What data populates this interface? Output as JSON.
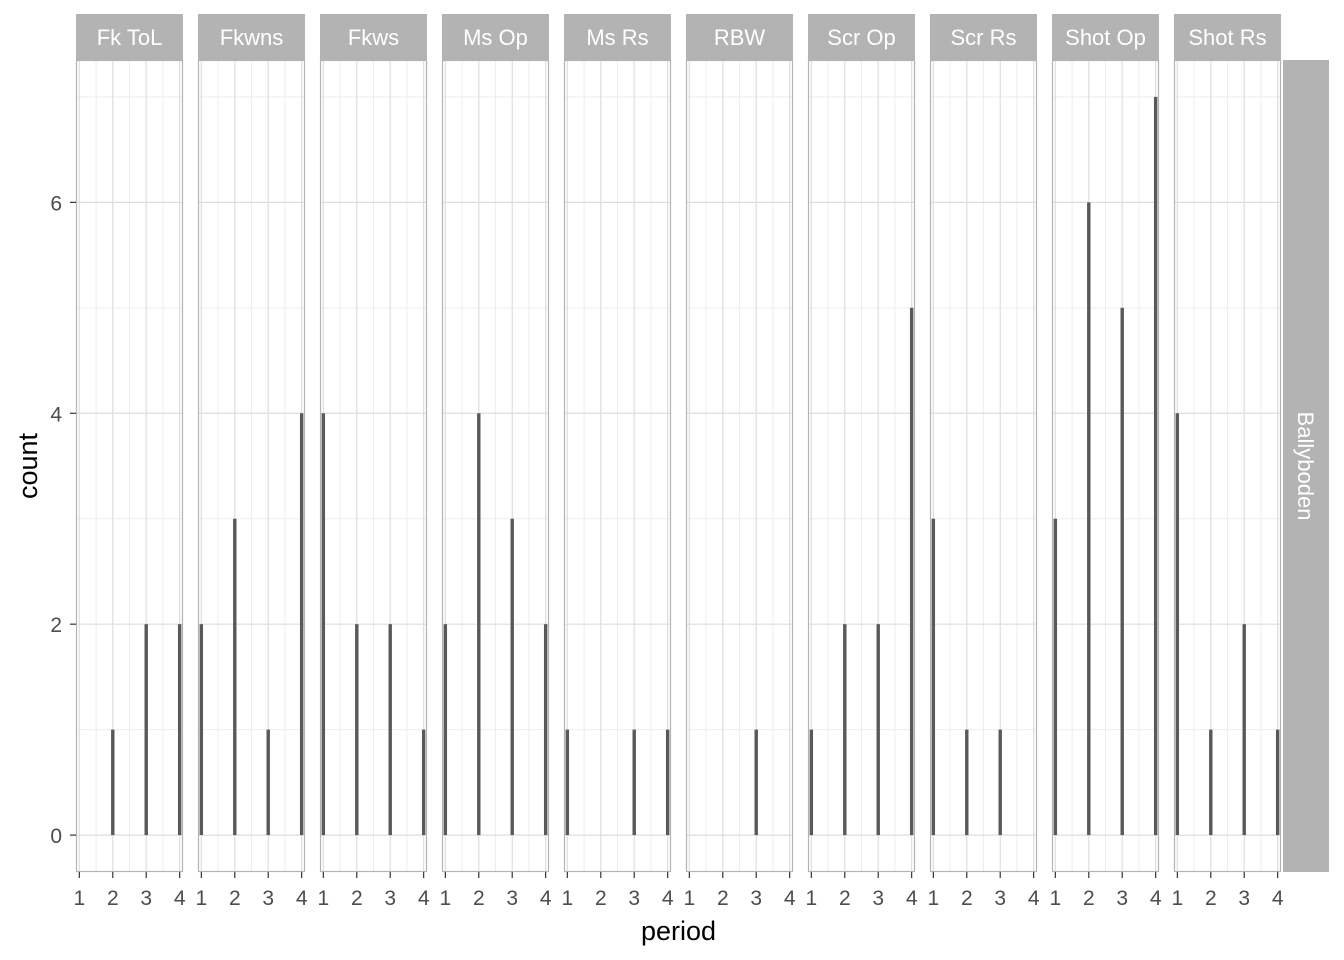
{
  "chart_data": {
    "type": "bar",
    "xlabel": "period",
    "ylabel": "count",
    "x_ticks": [
      1,
      2,
      3,
      4
    ],
    "y_ticks": [
      0,
      2,
      4,
      6
    ],
    "xlim": [
      0.9,
      4.1
    ],
    "ylim": [
      -0.35,
      7.35
    ],
    "grid": true,
    "row_strip": "Ballyboden",
    "panels": [
      {
        "name": "Fk ToL",
        "values": [
          0,
          1,
          2,
          2
        ]
      },
      {
        "name": "Fkwns",
        "values": [
          2,
          3,
          1,
          4
        ]
      },
      {
        "name": "Fkws",
        "values": [
          4,
          2,
          2,
          1
        ]
      },
      {
        "name": "Ms Op",
        "values": [
          2,
          4,
          3,
          2
        ]
      },
      {
        "name": "Ms Rs",
        "values": [
          1,
          0,
          1,
          1
        ]
      },
      {
        "name": "RBW",
        "values": [
          0,
          0,
          1,
          0
        ]
      },
      {
        "name": "Scr Op",
        "values": [
          1,
          2,
          2,
          5
        ]
      },
      {
        "name": "Scr Rs",
        "values": [
          3,
          1,
          1,
          0
        ]
      },
      {
        "name": "Shot Op",
        "values": [
          3,
          6,
          5,
          7
        ]
      },
      {
        "name": "Shot Rs",
        "values": [
          4,
          1,
          2,
          1
        ]
      }
    ],
    "colors": {
      "bar": "#595959",
      "strip_fill": "#b3b3b3",
      "strip_text": "#ffffff",
      "grid_major": "#dedede",
      "grid_minor": "#ededed",
      "panel_border": "#b3b3b3",
      "tick_text": "#4d4d4d"
    }
  }
}
